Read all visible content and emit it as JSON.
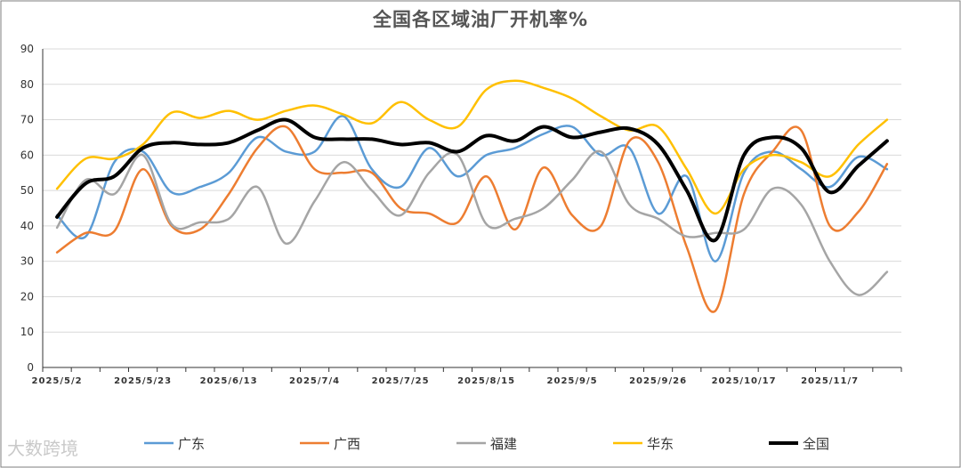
{
  "watermark": "大数跨境",
  "chart_data": {
    "type": "line",
    "title": "全国各区域油厂开机率%",
    "xlabel": "",
    "ylabel": "",
    "ylim": [
      0,
      90
    ],
    "yticks": [
      0,
      10,
      20,
      30,
      40,
      50,
      60,
      70,
      80,
      90
    ],
    "grid": true,
    "legend_position": "bottom",
    "x": [
      "2025/5/2",
      "2025/5/9",
      "2025/5/16",
      "2025/5/23",
      "2025/5/30",
      "2025/6/6",
      "2025/6/13",
      "2025/6/20",
      "2025/6/27",
      "2025/7/4",
      "2025/7/11",
      "2025/7/18",
      "2025/7/25",
      "2025/8/1",
      "2025/8/8",
      "2025/8/15",
      "2025/8/22",
      "2025/8/29",
      "2025/9/5",
      "2025/9/12",
      "2025/9/19",
      "2025/9/26",
      "2025/10/3",
      "2025/10/10",
      "2025/10/17",
      "2025/10/24",
      "2025/10/31",
      "2025/11/7",
      "2025/11/14",
      "2025/11/21"
    ],
    "x_tick_labels": [
      "2025/5/2",
      "2025/5/23",
      "2025/6/13",
      "2025/7/4",
      "2025/7/25",
      "2025/8/15",
      "2025/9/5",
      "2025/9/26",
      "2025/10/17",
      "2025/11/7"
    ],
    "series": [
      {
        "name": "广东",
        "color": "#5b9bd5",
        "width": 2.5,
        "values": [
          43,
          37,
          58,
          61,
          49.5,
          51,
          55,
          65,
          61,
          61,
          71,
          56,
          51,
          62,
          54,
          60,
          62,
          66,
          68,
          60,
          62,
          43.5,
          54,
          30,
          55,
          61,
          56,
          51,
          59.5,
          56
        ]
      },
      {
        "name": "广西",
        "color": "#ed7d31",
        "width": 2.5,
        "values": [
          32.5,
          38,
          38.5,
          56,
          40,
          39,
          49,
          62,
          68,
          56,
          55,
          55,
          45,
          43.5,
          41,
          54,
          39,
          56.5,
          43,
          40,
          64,
          58,
          34,
          16,
          49,
          61,
          67,
          40,
          44,
          57.5
        ]
      },
      {
        "name": "福建",
        "color": "#a5a5a5",
        "width": 2.5,
        "values": [
          39.5,
          53,
          49,
          60,
          40.5,
          41,
          42,
          51,
          35,
          47,
          58,
          50,
          43,
          55,
          60,
          40.5,
          42,
          45,
          53,
          61,
          46,
          42,
          37,
          38,
          39,
          50.5,
          46,
          30,
          20.5,
          27
        ]
      },
      {
        "name": "华东",
        "color": "#ffc000",
        "width": 2.5,
        "values": [
          50.5,
          59,
          59,
          63,
          72,
          70.5,
          72.5,
          70,
          72.5,
          74,
          71.5,
          69,
          75,
          70,
          68,
          78.5,
          81,
          79,
          76,
          71,
          67,
          68,
          56,
          43.5,
          56,
          60,
          58,
          54,
          63,
          70
        ]
      },
      {
        "name": "全国",
        "color": "#000000",
        "width": 4,
        "values": [
          42.5,
          52,
          54,
          62,
          63.5,
          63,
          63.5,
          67,
          70,
          65,
          64.5,
          64.5,
          63,
          63.5,
          61,
          65.5,
          64,
          68,
          65,
          66.5,
          67.5,
          63,
          50,
          36,
          60,
          65,
          62,
          49.5,
          57,
          64
        ]
      }
    ]
  }
}
